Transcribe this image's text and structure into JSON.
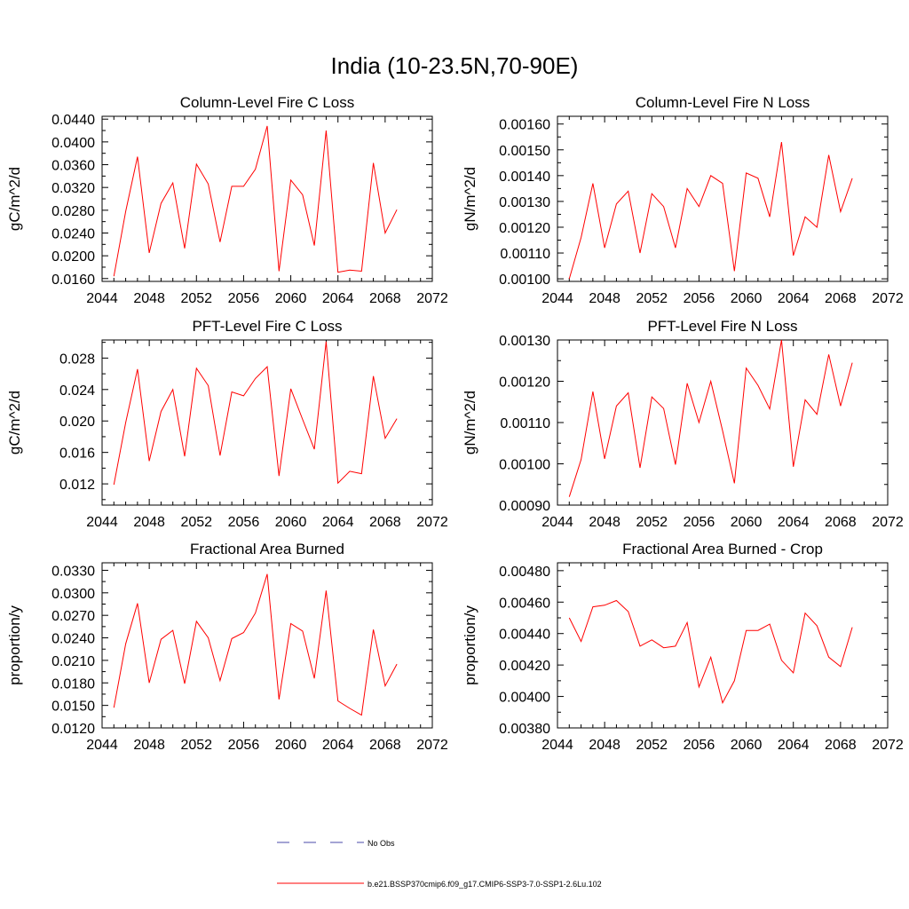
{
  "figure": {
    "title": "India (10-23.5N,70-90E)",
    "line_color": "#ff0000",
    "obs_color": "#4a4aa8"
  },
  "legend": {
    "obs_label": "No Obs",
    "model_label": "b.e21.BSSP370cmip6.f09_g17.CMIP6-SSP3-7.0-SSP1-2.6Lu.102"
  },
  "chart_data": [
    {
      "type": "line",
      "title": "Column-Level Fire C Loss",
      "ylabel": "gC/m^2/d",
      "xlim": [
        2044,
        2072
      ],
      "xticks": [
        "2044",
        "2048",
        "2052",
        "2056",
        "2060",
        "2064",
        "2068",
        "2072"
      ],
      "ylim": [
        0.0155,
        0.0445
      ],
      "yticks": [
        "0.0160",
        "0.0200",
        "0.0240",
        "0.0280",
        "0.0320",
        "0.0360",
        "0.0400",
        "0.0440"
      ],
      "x": [
        2045,
        2046,
        2047,
        2048,
        2049,
        2050,
        2051,
        2052,
        2053,
        2054,
        2055,
        2056,
        2057,
        2058,
        2059,
        2060,
        2061,
        2062,
        2063,
        2064,
        2065,
        2066,
        2067,
        2068,
        2069
      ],
      "series": [
        {
          "name": "b.e21.BSSP370cmip6.f09_g17.CMIP6-SSP3-7.0-SSP1-2.6Lu.102",
          "values": [
            0.0164,
            0.0278,
            0.0374,
            0.0205,
            0.0292,
            0.0328,
            0.0213,
            0.0361,
            0.0326,
            0.0224,
            0.0322,
            0.0322,
            0.0352,
            0.0428,
            0.0173,
            0.0333,
            0.0307,
            0.0218,
            0.042,
            0.0171,
            0.0175,
            0.0173,
            0.0363,
            0.024,
            0.0281
          ]
        }
      ]
    },
    {
      "type": "line",
      "title": "Column-Level Fire N Loss",
      "ylabel": "gN/m^2/d",
      "xlim": [
        2044,
        2072
      ],
      "xticks": [
        "2044",
        "2048",
        "2052",
        "2056",
        "2060",
        "2064",
        "2068",
        "2072"
      ],
      "ylim": [
        0.00099,
        0.00163
      ],
      "yticks": [
        "0.00100",
        "0.00110",
        "0.00120",
        "0.00130",
        "0.00140",
        "0.00150",
        "0.00160"
      ],
      "x": [
        2045,
        2046,
        2047,
        2048,
        2049,
        2050,
        2051,
        2052,
        2053,
        2054,
        2055,
        2056,
        2057,
        2058,
        2059,
        2060,
        2061,
        2062,
        2063,
        2064,
        2065,
        2066,
        2067,
        2068,
        2069
      ],
      "series": [
        {
          "name": "b.e21.BSSP370cmip6.f09_g17.CMIP6-SSP3-7.0-SSP1-2.6Lu.102",
          "values": [
            0.001,
            0.00116,
            0.00137,
            0.00112,
            0.00129,
            0.00134,
            0.0011,
            0.00133,
            0.00128,
            0.00112,
            0.00135,
            0.00128,
            0.0014,
            0.00137,
            0.00103,
            0.00141,
            0.00139,
            0.00124,
            0.00153,
            0.00109,
            0.00124,
            0.0012,
            0.00148,
            0.00126,
            0.00139
          ]
        }
      ]
    },
    {
      "type": "line",
      "title": "PFT-Level Fire C Loss",
      "ylabel": "gC/m^2/d",
      "xlim": [
        2044,
        2072
      ],
      "xticks": [
        "2044",
        "2048",
        "2052",
        "2056",
        "2060",
        "2064",
        "2068",
        "2072"
      ],
      "ylim": [
        0.0093,
        0.0303
      ],
      "yticks": [
        "0.012",
        "0.016",
        "0.020",
        "0.024",
        "0.028"
      ],
      "x": [
        2045,
        2046,
        2047,
        2048,
        2049,
        2050,
        2051,
        2052,
        2053,
        2054,
        2055,
        2056,
        2057,
        2058,
        2059,
        2060,
        2061,
        2062,
        2063,
        2064,
        2065,
        2066,
        2067,
        2068,
        2069
      ],
      "series": [
        {
          "name": "b.e21.BSSP370cmip6.f09_g17.CMIP6-SSP3-7.0-SSP1-2.6Lu.102",
          "values": [
            0.0119,
            0.0198,
            0.0266,
            0.0149,
            0.0212,
            0.024,
            0.0155,
            0.0267,
            0.0245,
            0.0156,
            0.0237,
            0.0232,
            0.0254,
            0.0269,
            0.013,
            0.0241,
            0.0202,
            0.0164,
            0.0301,
            0.0121,
            0.0136,
            0.0133,
            0.0257,
            0.0178,
            0.0203
          ]
        }
      ]
    },
    {
      "type": "line",
      "title": "PFT-Level Fire N Loss",
      "ylabel": "gN/m^2/d",
      "xlim": [
        2044,
        2072
      ],
      "xticks": [
        "2044",
        "2048",
        "2052",
        "2056",
        "2060",
        "2064",
        "2068",
        "2072"
      ],
      "ylim": [
        0.0009,
        0.0013
      ],
      "yticks": [
        "0.00090",
        "0.00100",
        "0.00110",
        "0.00120",
        "0.00130"
      ],
      "x": [
        2045,
        2046,
        2047,
        2048,
        2049,
        2050,
        2051,
        2052,
        2053,
        2054,
        2055,
        2056,
        2057,
        2058,
        2059,
        2060,
        2061,
        2062,
        2063,
        2064,
        2065,
        2066,
        2067,
        2068,
        2069
      ],
      "series": [
        {
          "name": "b.e21.BSSP370cmip6.f09_g17.CMIP6-SSP3-7.0-SSP1-2.6Lu.102",
          "values": [
            0.00092,
            0.00101,
            0.001175,
            0.001012,
            0.00114,
            0.001172,
            0.00099,
            0.001162,
            0.001134,
            0.000998,
            0.001195,
            0.0011,
            0.0012,
            0.00108,
            0.000953,
            0.001232,
            0.00119,
            0.001133,
            0.0013,
            0.000993,
            0.001155,
            0.00112,
            0.001265,
            0.00114,
            0.001245
          ]
        }
      ]
    },
    {
      "type": "line",
      "title": "Fractional Area Burned",
      "ylabel": "proportion/y",
      "xlim": [
        2044,
        2072
      ],
      "xticks": [
        "2044",
        "2048",
        "2052",
        "2056",
        "2060",
        "2064",
        "2068",
        "2072"
      ],
      "ylim": [
        0.012,
        0.034
      ],
      "yticks": [
        "0.0120",
        "0.0150",
        "0.0180",
        "0.0210",
        "0.0240",
        "0.0270",
        "0.0300",
        "0.0330"
      ],
      "x": [
        2045,
        2046,
        2047,
        2048,
        2049,
        2050,
        2051,
        2052,
        2053,
        2054,
        2055,
        2056,
        2057,
        2058,
        2059,
        2060,
        2061,
        2062,
        2063,
        2064,
        2065,
        2066,
        2067,
        2068,
        2069
      ],
      "series": [
        {
          "name": "b.e21.BSSP370cmip6.f09_g17.CMIP6-SSP3-7.0-SSP1-2.6Lu.102",
          "values": [
            0.0147,
            0.0232,
            0.0286,
            0.018,
            0.0238,
            0.025,
            0.0179,
            0.0262,
            0.024,
            0.0183,
            0.0239,
            0.0247,
            0.0273,
            0.0325,
            0.0158,
            0.0259,
            0.0249,
            0.0186,
            0.0303,
            0.0156,
            0.0146,
            0.0137,
            0.0251,
            0.0176,
            0.0205
          ]
        }
      ]
    },
    {
      "type": "line",
      "title": "Fractional Area Burned - Crop",
      "ylabel": "proportion/y",
      "xlim": [
        2044,
        2072
      ],
      "xticks": [
        "2044",
        "2048",
        "2052",
        "2056",
        "2060",
        "2064",
        "2068",
        "2072"
      ],
      "ylim": [
        0.0038,
        0.00485
      ],
      "yticks": [
        "0.00380",
        "0.00400",
        "0.00420",
        "0.00440",
        "0.00460",
        "0.00480"
      ],
      "x": [
        2045,
        2046,
        2047,
        2048,
        2049,
        2050,
        2051,
        2052,
        2053,
        2054,
        2055,
        2056,
        2057,
        2058,
        2059,
        2060,
        2061,
        2062,
        2063,
        2064,
        2065,
        2066,
        2067,
        2068,
        2069
      ],
      "series": [
        {
          "name": "b.e21.BSSP370cmip6.f09_g17.CMIP6-SSP3-7.0-SSP1-2.6Lu.102",
          "values": [
            0.0045,
            0.00435,
            0.00457,
            0.00458,
            0.00461,
            0.00454,
            0.00432,
            0.00436,
            0.00431,
            0.00432,
            0.00447,
            0.00406,
            0.00425,
            0.00396,
            0.0041,
            0.00442,
            0.00442,
            0.00446,
            0.00423,
            0.00415,
            0.00453,
            0.00445,
            0.00425,
            0.00419,
            0.00444
          ]
        }
      ]
    }
  ]
}
